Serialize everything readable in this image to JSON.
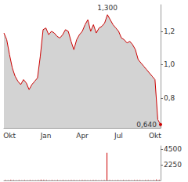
{
  "chart_data": [
    {
      "type": "line",
      "categories": [
        null,
        null,
        "Okt",
        null,
        null,
        null,
        null,
        null,
        null,
        null,
        null,
        null,
        null,
        null,
        null,
        "Jan",
        null,
        null,
        null,
        null,
        null,
        null,
        null,
        null,
        null,
        null,
        null,
        null,
        "Apr",
        null,
        null,
        null,
        null,
        null,
        null,
        null,
        null,
        null,
        null,
        null,
        null,
        "Jul",
        null,
        null,
        null,
        null,
        null,
        null,
        null,
        null,
        null,
        null,
        null,
        null,
        "Okt",
        null,
        null
      ],
      "values": [
        1.19,
        1.15,
        1.06,
        0.98,
        0.93,
        0.9,
        0.88,
        0.91,
        0.89,
        0.85,
        0.88,
        0.9,
        0.92,
        1.05,
        1.21,
        1.22,
        1.18,
        1.2,
        1.19,
        1.17,
        1.16,
        1.18,
        1.21,
        1.2,
        1.14,
        1.09,
        1.15,
        1.18,
        1.2,
        1.24,
        1.27,
        1.2,
        1.24,
        1.19,
        1.22,
        1.23,
        1.25,
        1.3,
        1.27,
        1.24,
        1.22,
        1.2,
        1.16,
        1.15,
        1.13,
        1.14,
        1.12,
        1.09,
        1.03,
        1.01,
        0.99,
        0.97,
        0.95,
        0.93,
        0.91,
        0.67,
        0.64
      ],
      "color": "#cc0000",
      "ylim": [
        0.62,
        1.36
      ],
      "yticks": [
        {
          "value": 0.8,
          "label": "0,8"
        },
        {
          "value": 1.0,
          "label": "1,0"
        },
        {
          "value": 1.2,
          "label": "1,2"
        }
      ],
      "annotations": [
        {
          "index": 37,
          "value": 1.3,
          "label": "1,300"
        },
        {
          "index": 56,
          "value": 0.64,
          "label": "0,640"
        }
      ],
      "grid": false
    },
    {
      "type": "bar",
      "categories": [
        null,
        null,
        "Okt",
        null,
        null,
        null,
        null,
        null,
        null,
        null,
        null,
        null,
        null,
        null,
        null,
        "Jan",
        null,
        null,
        null,
        null,
        null,
        null,
        null,
        null,
        null,
        null,
        null,
        null,
        "Apr",
        null,
        null,
        null,
        null,
        null,
        null,
        null,
        null,
        null,
        null,
        null,
        null,
        "Jul",
        null,
        null,
        null,
        null,
        null,
        null,
        null,
        null,
        null,
        null,
        null,
        null,
        "Okt",
        null,
        null
      ],
      "values": [
        60,
        40,
        80,
        50,
        30,
        70,
        40,
        60,
        30,
        50,
        40,
        30,
        60,
        120,
        90,
        50,
        40,
        60,
        30,
        50,
        40,
        60,
        30,
        40,
        70,
        50,
        40,
        30,
        60,
        50,
        40,
        30,
        50,
        60,
        40,
        30,
        50,
        4000,
        60,
        40,
        30,
        50,
        40,
        60,
        30,
        50,
        40,
        60,
        70,
        50,
        40,
        60,
        50,
        40,
        60,
        150,
        90
      ],
      "color": "#cc0000",
      "ylim": [
        0,
        5000
      ],
      "yticks": [
        2250,
        4500
      ],
      "tick_labels": "y",
      "grid": false
    }
  ]
}
